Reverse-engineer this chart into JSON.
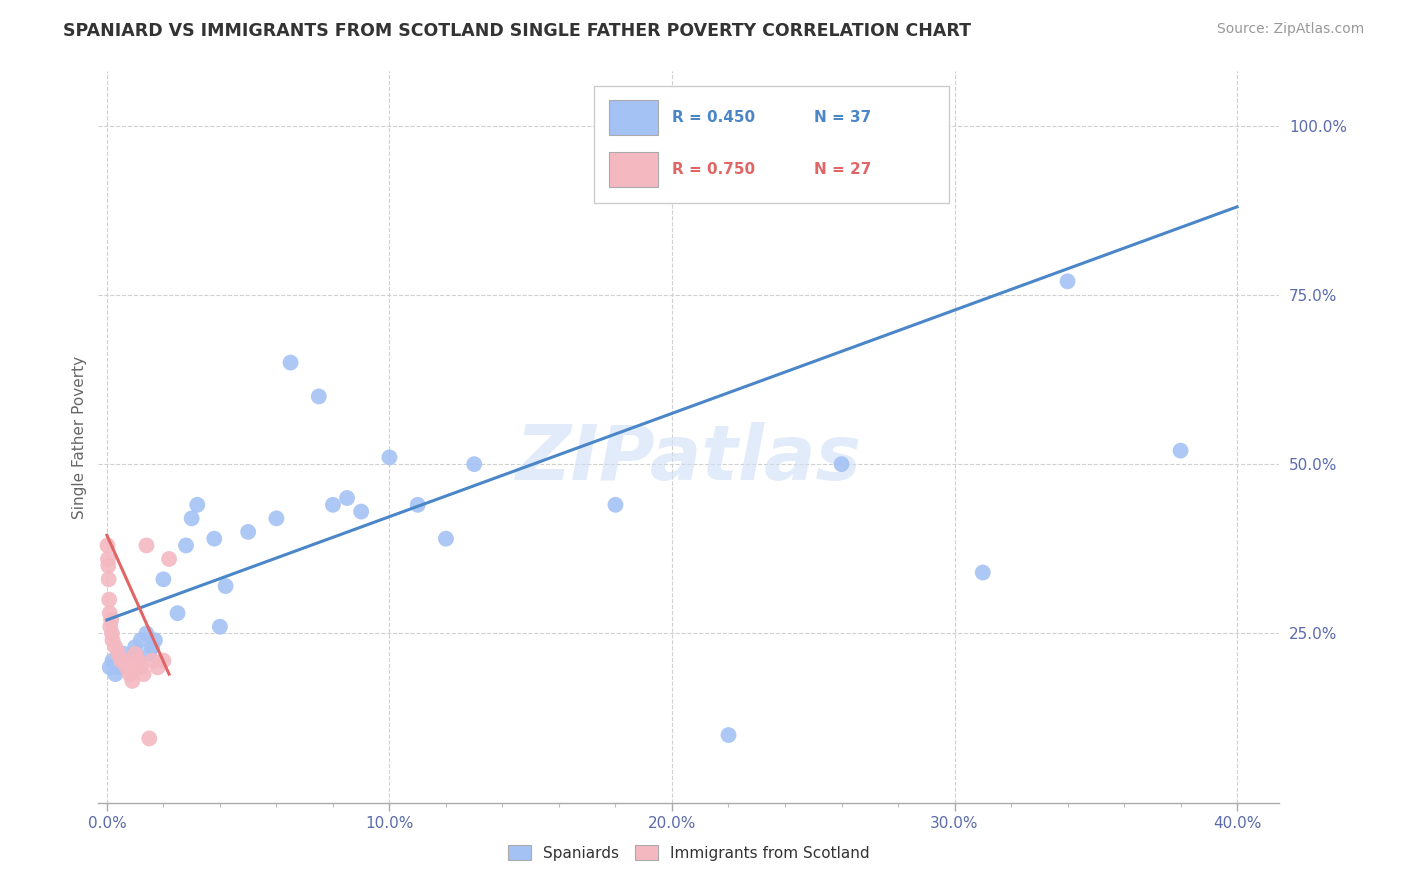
{
  "title": "SPANIARD VS IMMIGRANTS FROM SCOTLAND SINGLE FATHER POVERTY CORRELATION CHART",
  "source": "Source: ZipAtlas.com",
  "ylabel_label": "Single Father Poverty",
  "x_ticks": [
    "0.0%",
    "10.0%",
    "20.0%",
    "30.0%",
    "40.0%"
  ],
  "x_tick_vals": [
    0.0,
    0.1,
    0.2,
    0.3,
    0.4
  ],
  "y_ticks": [
    "25.0%",
    "50.0%",
    "75.0%",
    "100.0%"
  ],
  "y_tick_vals": [
    0.25,
    0.5,
    0.75,
    1.0
  ],
  "y_min": 0.0,
  "y_max": 1.08,
  "x_min": -0.003,
  "x_max": 0.415,
  "blue_color": "#a4c2f4",
  "pink_color": "#f4b8c1",
  "blue_line_color": "#4a86c8",
  "pink_line_color": "#e06666",
  "legend_label_blue": "Spaniards",
  "legend_label_pink": "Immigrants from Scotland",
  "watermark": "ZIPatlas",
  "blue_scatter_x": [
    0.001,
    0.002,
    0.003,
    0.004,
    0.005,
    0.006,
    0.01,
    0.012,
    0.014,
    0.015,
    0.016,
    0.017,
    0.02,
    0.025,
    0.028,
    0.03,
    0.032,
    0.038,
    0.04,
    0.042,
    0.05,
    0.06,
    0.065,
    0.075,
    0.08,
    0.085,
    0.09,
    0.1,
    0.11,
    0.12,
    0.13,
    0.18,
    0.22,
    0.26,
    0.31,
    0.34,
    0.38
  ],
  "blue_scatter_y": [
    0.2,
    0.21,
    0.19,
    0.2,
    0.21,
    0.22,
    0.23,
    0.24,
    0.25,
    0.22,
    0.23,
    0.24,
    0.33,
    0.28,
    0.38,
    0.42,
    0.44,
    0.39,
    0.26,
    0.32,
    0.4,
    0.42,
    0.65,
    0.6,
    0.44,
    0.45,
    0.43,
    0.51,
    0.44,
    0.39,
    0.5,
    0.44,
    0.1,
    0.5,
    0.34,
    0.77,
    0.52
  ],
  "pink_scatter_x": [
    0.0002,
    0.0004,
    0.0005,
    0.0006,
    0.0008,
    0.001,
    0.0012,
    0.0015,
    0.0018,
    0.002,
    0.003,
    0.004,
    0.005,
    0.006,
    0.007,
    0.008,
    0.009,
    0.01,
    0.011,
    0.012,
    0.013,
    0.014,
    0.015,
    0.016,
    0.018,
    0.02,
    0.022
  ],
  "pink_scatter_y": [
    0.38,
    0.36,
    0.35,
    0.33,
    0.3,
    0.28,
    0.26,
    0.27,
    0.25,
    0.24,
    0.23,
    0.22,
    0.21,
    0.21,
    0.2,
    0.19,
    0.18,
    0.22,
    0.21,
    0.2,
    0.19,
    0.38,
    0.095,
    0.21,
    0.2,
    0.21,
    0.36
  ],
  "blue_line_x": [
    0.0,
    0.4
  ],
  "blue_line_y": [
    0.27,
    0.88
  ],
  "pink_line_x": [
    0.0,
    0.022
  ],
  "pink_line_y": [
    0.395,
    0.19
  ],
  "tick_color": "#5b6bab",
  "grid_color": "#d0d0d0"
}
